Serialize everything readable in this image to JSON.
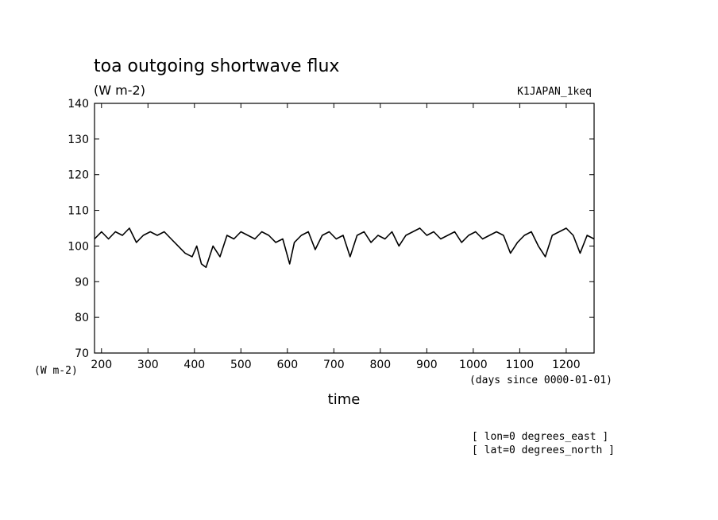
{
  "chart_data": {
    "type": "line",
    "title": "toa outgoing shortwave flux",
    "subtitle": "(W m-2)",
    "dataset_label": "K1JAPAN_1keq",
    "xlabel": "time",
    "x_units": "(days since 0000-01-01)",
    "y_units": "(W m-2)",
    "xlim": [
      185,
      1260
    ],
    "ylim": [
      70,
      140
    ],
    "x_ticks": [
      200,
      300,
      400,
      500,
      600,
      700,
      800,
      900,
      1000,
      1100,
      1200
    ],
    "y_ticks": [
      70,
      80,
      90,
      100,
      110,
      120,
      130,
      140
    ],
    "grid": false,
    "annotations": [
      "[ lon=0 degrees_east ]",
      "[ lat=0 degrees_north ]"
    ],
    "series": [
      {
        "color": "#000000",
        "x": [
          185,
          200,
          215,
          230,
          245,
          260,
          275,
          290,
          305,
          320,
          335,
          350,
          365,
          380,
          395,
          405,
          415,
          425,
          440,
          455,
          470,
          485,
          500,
          515,
          530,
          545,
          560,
          575,
          590,
          605,
          615,
          630,
          645,
          660,
          675,
          690,
          705,
          720,
          735,
          750,
          765,
          780,
          795,
          810,
          825,
          840,
          855,
          870,
          885,
          900,
          915,
          930,
          945,
          960,
          975,
          990,
          1005,
          1020,
          1035,
          1050,
          1065,
          1080,
          1095,
          1110,
          1125,
          1140,
          1155,
          1170,
          1185,
          1200,
          1215,
          1230,
          1245,
          1260
        ],
        "y": [
          102,
          104,
          102,
          104,
          103,
          105,
          101,
          103,
          104,
          103,
          104,
          102,
          100,
          98,
          97,
          100,
          95,
          94,
          100,
          97,
          103,
          102,
          104,
          103,
          102,
          104,
          103,
          101,
          102,
          95,
          101,
          103,
          104,
          99,
          103,
          104,
          102,
          103,
          97,
          103,
          104,
          101,
          103,
          102,
          104,
          100,
          103,
          104,
          105,
          103,
          104,
          102,
          103,
          104,
          101,
          103,
          104,
          102,
          103,
          104,
          103,
          98,
          101,
          103,
          104,
          100,
          97,
          103,
          104,
          105,
          103,
          98,
          103,
          102
        ]
      }
    ]
  }
}
